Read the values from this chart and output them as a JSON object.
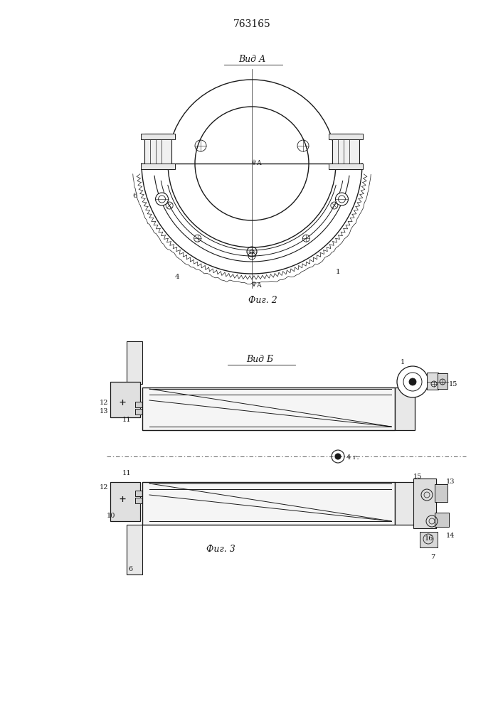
{
  "title": "763165",
  "fig2_label": "Вид А",
  "fig2_caption": "Фиг. 2",
  "fig3_label": "Вид Б",
  "fig3_caption": "Фиг. 3",
  "bg_color": "#ffffff",
  "lc": "#1a1a1a",
  "lw": 0.8
}
